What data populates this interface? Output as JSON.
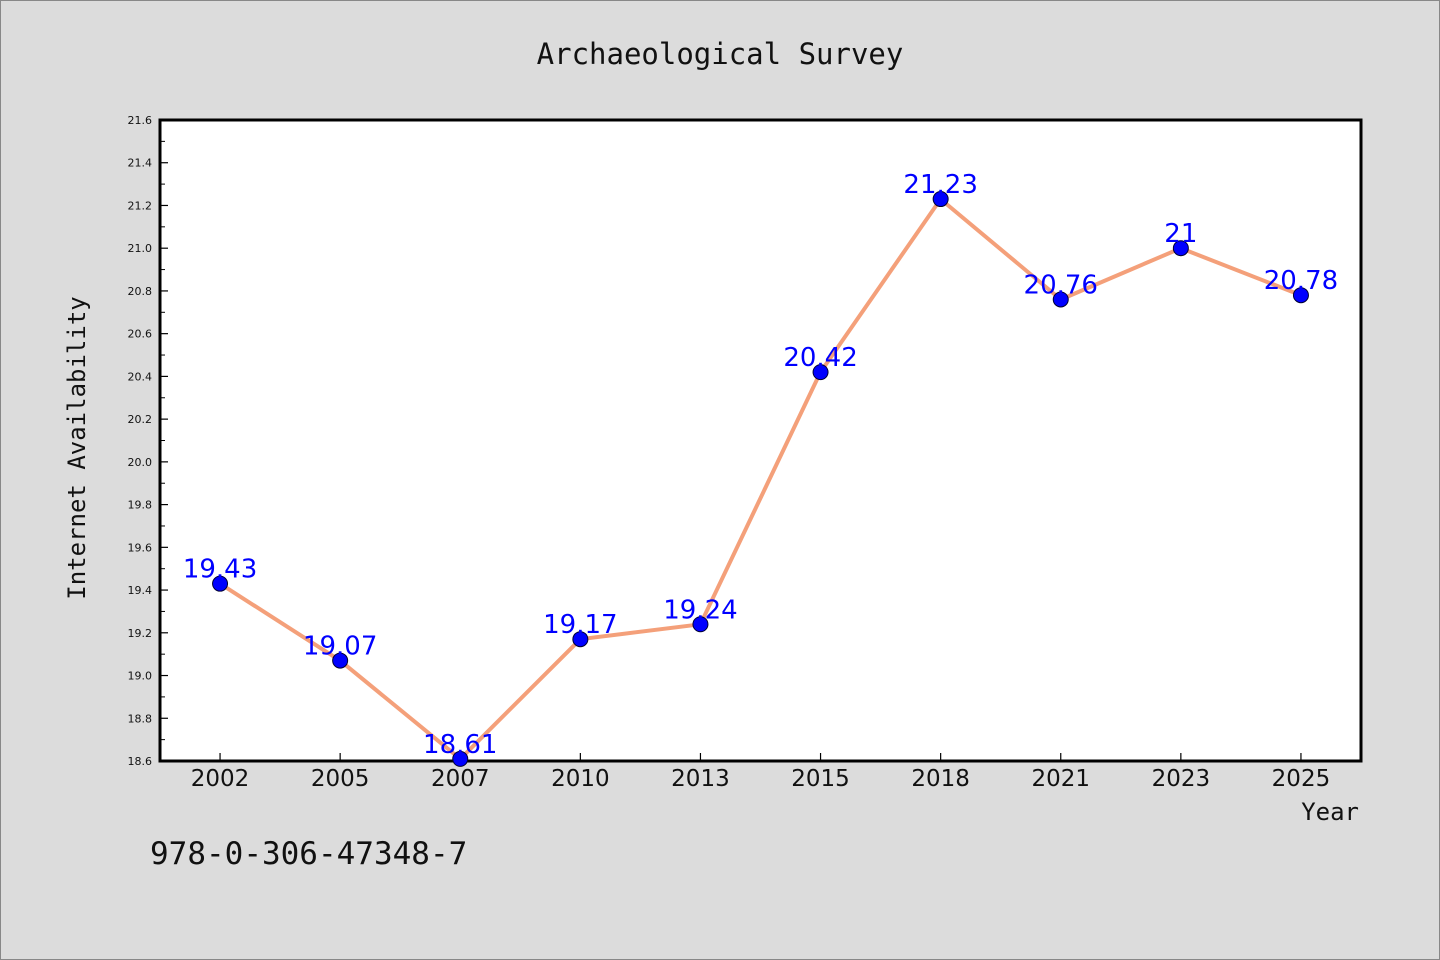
{
  "chart_data": {
    "type": "line",
    "title": "Archaeological Survey",
    "xlabel": "Year",
    "ylabel": "Internet Availability",
    "categories": [
      "2002",
      "2005",
      "2007",
      "2010",
      "2013",
      "2015",
      "2018",
      "2021",
      "2023",
      "2025"
    ],
    "values": [
      19.43,
      19.07,
      18.61,
      19.17,
      19.24,
      20.42,
      21.23,
      20.76,
      21,
      20.78
    ],
    "data_labels": [
      "19.43",
      "19.07",
      "18.61",
      "19.17",
      "19.24",
      "20.42",
      "21.23",
      "20.76",
      "21",
      "20.78"
    ],
    "ylim": [
      18.6,
      21.6
    ],
    "yticks": [
      "18.6",
      "18.8",
      "19.0",
      "19.2",
      "19.4",
      "19.6",
      "19.8",
      "20.0",
      "20.2",
      "20.4",
      "20.6",
      "20.8",
      "21.0",
      "21.2",
      "21.4",
      "21.6"
    ],
    "grid": false,
    "line_color": "#f4a07a",
    "marker_color": "#0000ff",
    "label_color": "#0000ff",
    "background_color": "#dcdcdc",
    "plot_background_color": "#ffffff"
  },
  "footnote": "978-0-306-47348-7"
}
